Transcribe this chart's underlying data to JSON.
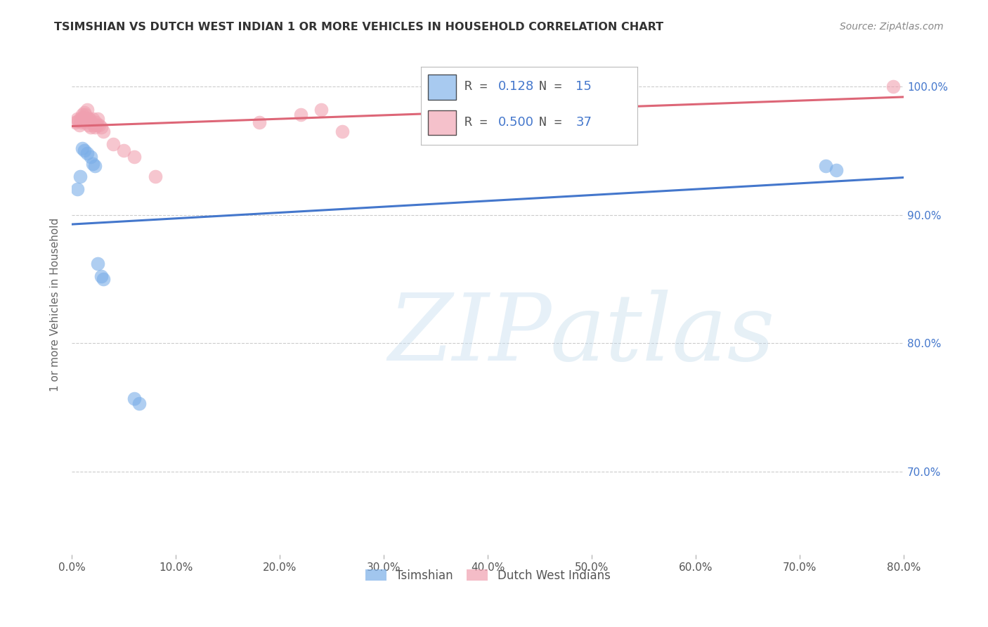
{
  "title": "TSIMSHIAN VS DUTCH WEST INDIAN 1 OR MORE VEHICLES IN HOUSEHOLD CORRELATION CHART",
  "source": "Source: ZipAtlas.com",
  "ylabel_label": "1 or more Vehicles in Household",
  "xlim": [
    0.0,
    0.8
  ],
  "ylim": [
    0.635,
    1.025
  ],
  "y_ticks": [
    0.7,
    0.8,
    0.9,
    1.0
  ],
  "x_ticks": [
    0.0,
    0.1,
    0.2,
    0.3,
    0.4,
    0.5,
    0.6,
    0.7,
    0.8
  ],
  "tsimshian_x": [
    0.005,
    0.008,
    0.01,
    0.012,
    0.015,
    0.018,
    0.02,
    0.022,
    0.025,
    0.028,
    0.03,
    0.06,
    0.065,
    0.725,
    0.735
  ],
  "tsimshian_y": [
    0.92,
    0.93,
    0.952,
    0.95,
    0.948,
    0.945,
    0.94,
    0.938,
    0.862,
    0.852,
    0.85,
    0.757,
    0.753,
    0.938,
    0.935
  ],
  "dutch_x": [
    0.003,
    0.005,
    0.006,
    0.007,
    0.008,
    0.009,
    0.01,
    0.01,
    0.011,
    0.012,
    0.013,
    0.013,
    0.014,
    0.015,
    0.016,
    0.016,
    0.017,
    0.018,
    0.019,
    0.02,
    0.021,
    0.022,
    0.023,
    0.024,
    0.025,
    0.026,
    0.028,
    0.03,
    0.04,
    0.05,
    0.06,
    0.08,
    0.18,
    0.22,
    0.24,
    0.26,
    0.79
  ],
  "dutch_y": [
    0.972,
    0.975,
    0.973,
    0.97,
    0.975,
    0.972,
    0.978,
    0.975,
    0.976,
    0.98,
    0.978,
    0.972,
    0.975,
    0.982,
    0.975,
    0.97,
    0.975,
    0.968,
    0.972,
    0.975,
    0.97,
    0.968,
    0.972,
    0.97,
    0.975,
    0.97,
    0.968,
    0.965,
    0.955,
    0.95,
    0.945,
    0.93,
    0.972,
    0.978,
    0.982,
    0.965,
    1.0
  ],
  "blue_scatter_color": "#7aaee8",
  "pink_scatter_color": "#f0a0b0",
  "blue_line_color": "#4477cc",
  "pink_line_color": "#dd6677",
  "blue_legend_color": "#7aaee8",
  "pink_legend_color": "#f0a0b0",
  "r_blue": "0.128",
  "n_blue": "15",
  "r_pink": "0.500",
  "n_pink": "37",
  "legend_label_blue": "Tsimshian",
  "legend_label_pink": "Dutch West Indians",
  "watermark_zip": "ZIP",
  "watermark_atlas": "atlas",
  "background_color": "#ffffff",
  "grid_color": "#cccccc",
  "right_tick_color": "#4477cc",
  "title_color": "#333333",
  "label_color": "#666666"
}
